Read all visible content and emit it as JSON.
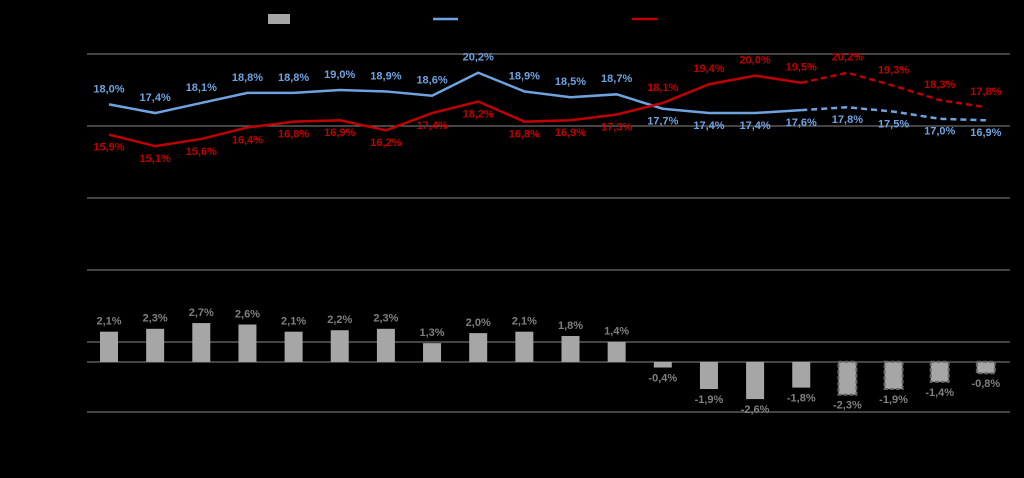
{
  "chart_data": [
    {
      "type": "line",
      "categories": [
        null,
        null,
        null,
        null,
        null,
        null,
        null,
        null,
        null,
        null,
        null,
        null,
        null,
        null,
        null,
        null,
        null,
        null,
        null,
        null
      ],
      "series": [
        {
          "color": "#6fa3e0",
          "values": [
            18.0,
            17.4,
            18.1,
            18.8,
            18.8,
            19.0,
            18.9,
            18.6,
            20.2,
            18.9,
            18.5,
            18.7,
            17.7,
            17.4,
            17.4,
            17.6,
            17.8,
            17.5,
            17.0,
            16.9
          ],
          "value_labels": [
            "18,0%",
            "17,4%",
            "18,1%",
            "18,8%",
            "18,8%",
            "19,0%",
            "18,9%",
            "18,6%",
            "20,2%",
            "18,9%",
            "18,5%",
            "18,7%",
            "17,7%",
            "17,4%",
            "17,4%",
            "17,6%",
            "17,8%",
            "17,5%",
            "17,0%",
            "16,9%"
          ]
        },
        {
          "color": "#c00000",
          "values": [
            15.9,
            15.1,
            15.6,
            16.4,
            16.8,
            16.9,
            16.2,
            17.4,
            18.2,
            16.8,
            16.9,
            17.3,
            18.1,
            19.4,
            20.0,
            19.5,
            20.2,
            19.3,
            18.3,
            17.8
          ],
          "value_labels": [
            "15,9%",
            "15,1%",
            "15,6%",
            "16,4%",
            "16,8%",
            "16,9%",
            "16,2%",
            "17,4%",
            "18,2%",
            "16,8%",
            "16,9%",
            "17,3%",
            "18,1%",
            "19,4%",
            "20,0%",
            "19,5%",
            "20,2%",
            "19,3%",
            "18,3%",
            "17,8%"
          ]
        }
      ],
      "ylim": [
        6.5,
        21.5
      ],
      "dashed_from": 15
    },
    {
      "type": "bar",
      "categories": [
        null,
        null,
        null,
        null,
        null,
        null,
        null,
        null,
        null,
        null,
        null,
        null,
        null,
        null,
        null,
        null,
        null,
        null,
        null,
        null
      ],
      "values": [
        2.1,
        2.3,
        2.7,
        2.6,
        2.1,
        2.2,
        2.3,
        1.3,
        2.0,
        2.1,
        1.8,
        1.4,
        -0.4,
        -1.9,
        -2.6,
        -1.8,
        -2.3,
        -1.9,
        -1.4,
        -0.8
      ],
      "value_labels": [
        "2,1%",
        "2,3%",
        "2,7%",
        "2,6%",
        "2,1%",
        "2,2%",
        "2,3%",
        "1,3%",
        "2,0%",
        "2,1%",
        "1,8%",
        "1,4%",
        "-0,4%",
        "-1,9%",
        "-2,6%",
        "-1,8%",
        "-2,3%",
        "-1,9%",
        "-1,4%",
        "-0,8%"
      ],
      "color": "#a6a6a6",
      "ylim": [
        -3.5,
        6.4
      ],
      "dashed_from": 16
    }
  ]
}
